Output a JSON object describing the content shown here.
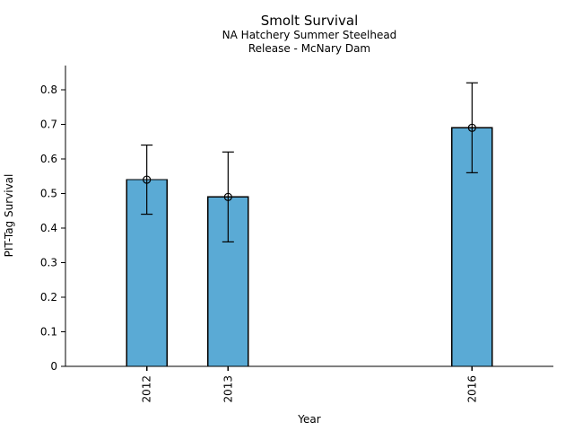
{
  "chart_data": {
    "type": "bar",
    "title": "Smolt Survival",
    "subtitle": [
      "NA Hatchery Summer Steelhead",
      "Release - McNary Dam"
    ],
    "xlabel": "Year",
    "ylabel": "PIT-Tag Survival",
    "categories": [
      "2012",
      "2013",
      "2016"
    ],
    "x_values": [
      2012,
      2013,
      2016
    ],
    "values": [
      0.54,
      0.49,
      0.69
    ],
    "error_bars": {
      "low": [
        0.44,
        0.36,
        0.56
      ],
      "high": [
        0.64,
        0.62,
        0.82
      ]
    },
    "marker": "open-circle",
    "yticks": [
      0,
      0.1,
      0.2,
      0.3,
      0.4,
      0.5,
      0.6,
      0.7,
      0.8
    ],
    "ytick_labels": [
      "0",
      "0.1",
      "0.2",
      "0.3",
      "0.4",
      "0.5",
      "0.6",
      "0.7",
      "0.8"
    ],
    "ylim": [
      0,
      0.87
    ],
    "xlim": [
      2011,
      2017
    ],
    "xtick_rotation": 90,
    "grid": false,
    "legend": "none",
    "bar_color": "#5AAAD5",
    "bar_edge_color": "#000000",
    "error_color": "#000000",
    "axis_color": "#000000"
  }
}
